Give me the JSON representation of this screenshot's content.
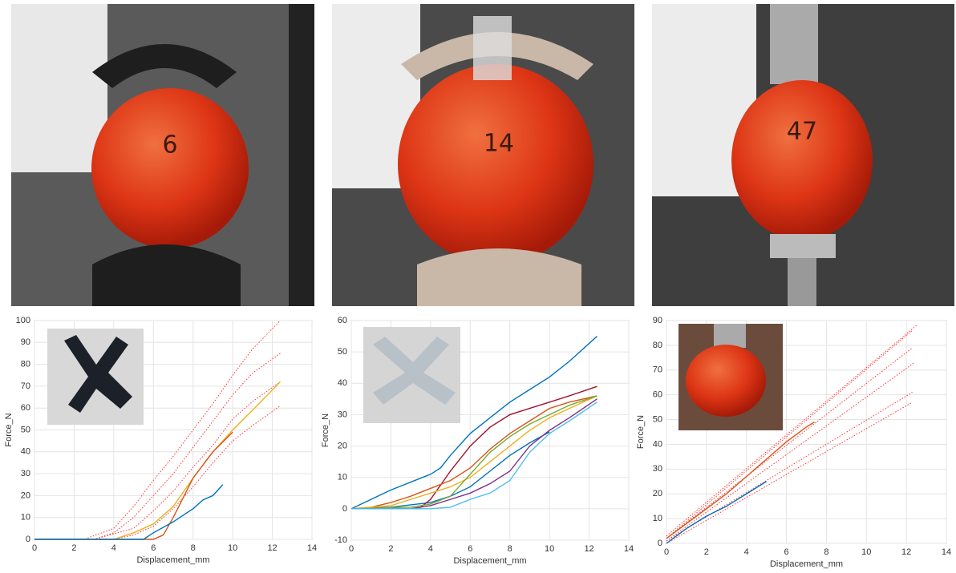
{
  "photos": [
    {
      "label": "6"
    },
    {
      "label": "14"
    },
    {
      "label": "47"
    }
  ],
  "chart_data": [
    {
      "type": "line",
      "x_label": "Displacement_mm",
      "y_label": "Force_N",
      "xlim": [
        0,
        14
      ],
      "xticks": [
        0,
        2,
        4,
        6,
        8,
        10,
        12,
        14
      ],
      "ylim": [
        0,
        100
      ],
      "yticks": [
        0,
        10,
        20,
        30,
        40,
        50,
        60,
        70,
        80,
        90,
        100
      ],
      "grid": true,
      "series": [
        {
          "color": "#ff3333",
          "style": "dotted",
          "x": [
            0,
            2.5,
            4,
            5,
            6,
            7,
            8,
            9,
            10,
            11,
            12.4
          ],
          "values": [
            0,
            0,
            5,
            15,
            27,
            38,
            50,
            62,
            75,
            87,
            100
          ]
        },
        {
          "color": "#ff3333",
          "style": "dotted",
          "x": [
            0,
            3,
            4,
            5,
            6,
            7,
            8,
            9,
            10,
            11,
            12.4
          ],
          "values": [
            0,
            0,
            3,
            10,
            20,
            30,
            42,
            54,
            66,
            76,
            85
          ]
        },
        {
          "color": "#ff3333",
          "style": "dotted",
          "x": [
            0,
            3,
            5,
            6,
            7,
            8,
            9,
            10,
            11,
            12.4
          ],
          "values": [
            0,
            0,
            5,
            13,
            22,
            33,
            43,
            55,
            63,
            72
          ]
        },
        {
          "color": "#ff3333",
          "style": "dotted",
          "x": [
            0,
            4,
            5,
            6,
            7,
            8,
            9,
            10,
            11,
            12.4
          ],
          "values": [
            0,
            0,
            2,
            6,
            14,
            24,
            35,
            45,
            52,
            61
          ]
        },
        {
          "color": "#EDB120",
          "style": "solid",
          "x": [
            0,
            4,
            5,
            6,
            7,
            8,
            9,
            10,
            11,
            12.4
          ],
          "values": [
            0,
            0,
            3,
            7,
            15,
            28,
            40,
            50,
            59,
            72
          ]
        },
        {
          "color": "#D95319",
          "style": "solid",
          "x": [
            0,
            6,
            6.5,
            7,
            8,
            9,
            10
          ],
          "values": [
            0,
            0,
            2,
            10,
            28,
            40,
            49
          ]
        },
        {
          "color": "#0072BD",
          "style": "solid",
          "x": [
            0,
            5.5,
            6,
            7,
            8,
            8.5,
            9,
            9.5
          ],
          "values": [
            0,
            0,
            3,
            8,
            14,
            18,
            20,
            25
          ]
        }
      ]
    },
    {
      "type": "line",
      "x_label": "Displacement_mm",
      "y_label": "Force_N",
      "xlim": [
        0,
        14
      ],
      "xticks": [
        0,
        2,
        4,
        6,
        8,
        10,
        12,
        14
      ],
      "ylim": [
        -10,
        60
      ],
      "yticks": [
        -10,
        0,
        10,
        20,
        30,
        40,
        50,
        60
      ],
      "grid": true,
      "series": [
        {
          "color": "#0072BD",
          "style": "solid",
          "x": [
            0,
            1,
            2,
            3,
            4,
            4.5,
            5,
            6,
            7,
            8,
            9,
            10,
            11,
            12.4
          ],
          "values": [
            0,
            3,
            6,
            8.5,
            11,
            13,
            17,
            24,
            29,
            34,
            38,
            42,
            47,
            55
          ]
        },
        {
          "color": "#0072BD",
          "style": "solid",
          "x": [
            0,
            2,
            4,
            5,
            6,
            7,
            8,
            9,
            10
          ],
          "values": [
            0,
            0.5,
            2,
            4,
            7,
            12,
            17,
            21,
            24.5
          ]
        },
        {
          "color": "#A2142F",
          "style": "solid",
          "x": [
            0,
            3,
            3.5,
            4,
            5,
            6,
            7,
            8,
            9,
            10,
            11,
            12.4
          ],
          "values": [
            0,
            0,
            0.5,
            3,
            12,
            20,
            26,
            30,
            32,
            34,
            36,
            39
          ]
        },
        {
          "color": "#D95319",
          "style": "solid",
          "x": [
            0,
            1,
            2,
            3,
            4,
            5,
            6,
            7,
            8,
            9,
            10,
            11,
            12.4
          ],
          "values": [
            0,
            0.5,
            2,
            4,
            6.5,
            9,
            13,
            19,
            24,
            28,
            32,
            34,
            36
          ]
        },
        {
          "color": "#EDB120",
          "style": "solid",
          "x": [
            0,
            2,
            3,
            4,
            5,
            6,
            7,
            8,
            9,
            10,
            11,
            12.4
          ],
          "values": [
            0,
            1,
            3,
            5,
            7,
            10,
            15,
            20,
            25,
            29,
            32,
            36
          ]
        },
        {
          "color": "#77AC30",
          "style": "solid",
          "x": [
            0,
            3,
            4,
            5,
            6,
            7,
            8,
            9,
            10,
            11,
            12.4
          ],
          "values": [
            0,
            0.5,
            1.5,
            4,
            11,
            18,
            23,
            27,
            30,
            33,
            36
          ]
        },
        {
          "color": "#7E2F8E",
          "style": "solid",
          "x": [
            0,
            3,
            4,
            5,
            6,
            7,
            8,
            9,
            10,
            11,
            12.4
          ],
          "values": [
            0,
            0,
            1,
            3,
            5,
            8,
            12,
            20,
            25,
            29,
            35
          ]
        },
        {
          "color": "#4DBEEE",
          "style": "solid",
          "x": [
            0,
            4,
            5,
            6,
            7,
            8,
            9,
            10,
            11,
            12.4
          ],
          "values": [
            0,
            0,
            0.5,
            3,
            5,
            9,
            18,
            24,
            28,
            34
          ]
        }
      ]
    },
    {
      "type": "line",
      "x_label": "Displacement_mm",
      "y_label": "Force_N",
      "xlim": [
        0,
        14
      ],
      "xticks": [
        0,
        2,
        4,
        6,
        8,
        10,
        12,
        14
      ],
      "ylim": [
        0,
        90
      ],
      "yticks": [
        0,
        10,
        20,
        30,
        40,
        50,
        60,
        70,
        80,
        90
      ],
      "grid": true,
      "series": [
        {
          "color": "#ff3333",
          "style": "dotted",
          "x": [
            0,
            12.5
          ],
          "values": [
            3,
            88
          ]
        },
        {
          "color": "#ff3333",
          "style": "dotted",
          "x": [
            0,
            12.3
          ],
          "values": [
            2,
            86
          ]
        },
        {
          "color": "#ff3333",
          "style": "dotted",
          "x": [
            0,
            12.3
          ],
          "values": [
            2,
            79
          ]
        },
        {
          "color": "#ff3333",
          "style": "dotted",
          "x": [
            0,
            12.4
          ],
          "values": [
            1,
            73
          ]
        },
        {
          "color": "#ff3333",
          "style": "dotted",
          "x": [
            0,
            12.3
          ],
          "values": [
            1,
            61
          ]
        },
        {
          "color": "#ff3333",
          "style": "dotted",
          "x": [
            0,
            12.3
          ],
          "values": [
            0,
            57
          ]
        },
        {
          "color": "#D95319",
          "style": "solid",
          "x": [
            0,
            1,
            2,
            3,
            4,
            5,
            6,
            7,
            7.4
          ],
          "values": [
            2,
            8,
            14,
            20,
            27,
            34,
            41,
            47,
            49
          ]
        },
        {
          "color": "#0072BD",
          "style": "solid",
          "x": [
            0,
            1,
            2,
            3,
            4,
            5
          ],
          "values": [
            0,
            6,
            11,
            15,
            20,
            25
          ]
        }
      ]
    }
  ]
}
